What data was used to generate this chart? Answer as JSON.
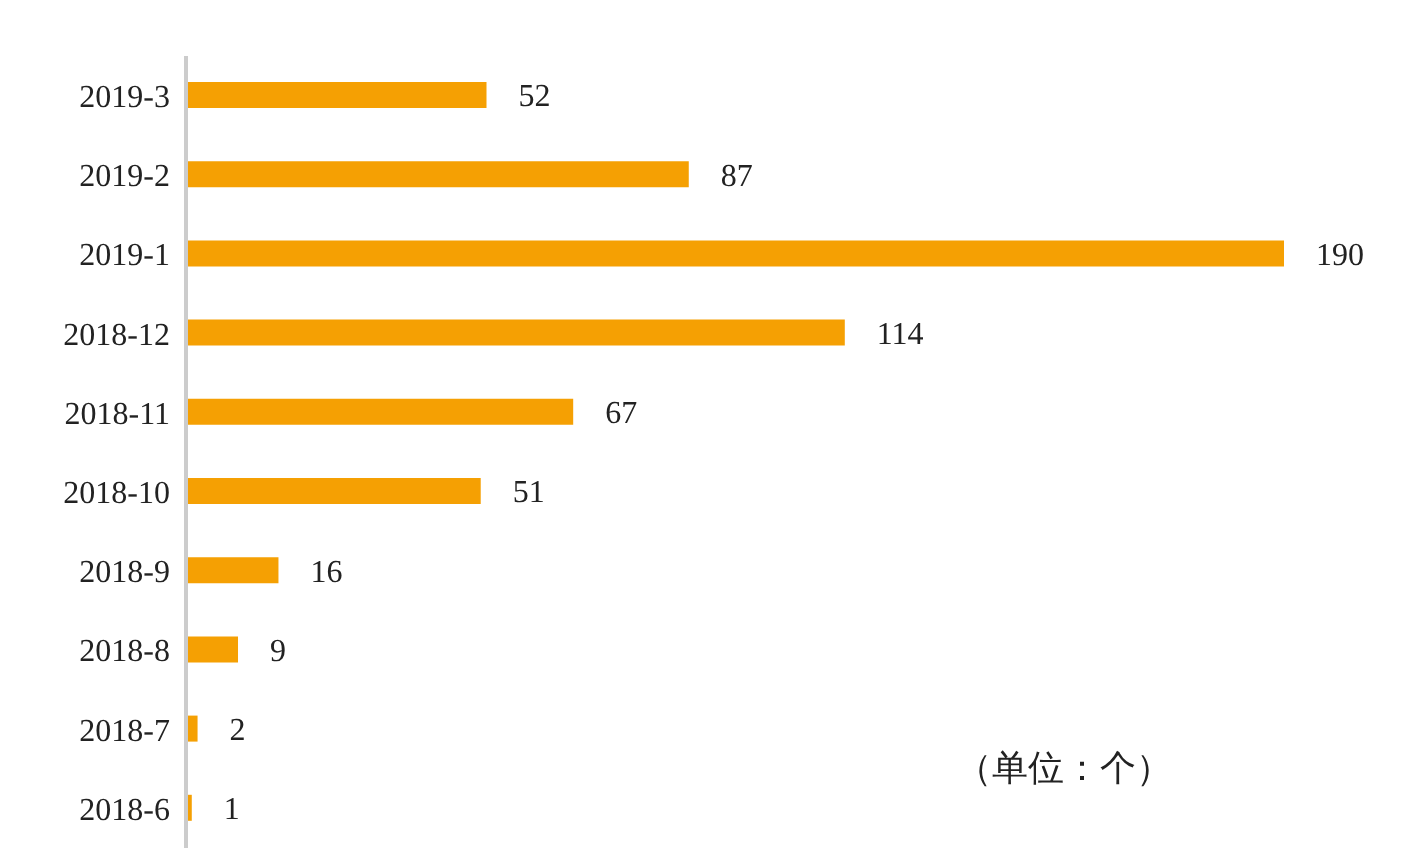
{
  "chart_data": {
    "type": "bar",
    "orientation": "horizontal",
    "categories": [
      "2019-3",
      "2019-2",
      "2019-1",
      "2018-12",
      "2018-11",
      "2018-10",
      "2018-9",
      "2018-8",
      "2018-7",
      "2018-6"
    ],
    "values": [
      52,
      87,
      190,
      114,
      67,
      51,
      16,
      9,
      2,
      1
    ],
    "color": "#f5a003",
    "data_labels": true,
    "tick_labels": "y",
    "annotations": [
      "（单位：个）"
    ]
  }
}
